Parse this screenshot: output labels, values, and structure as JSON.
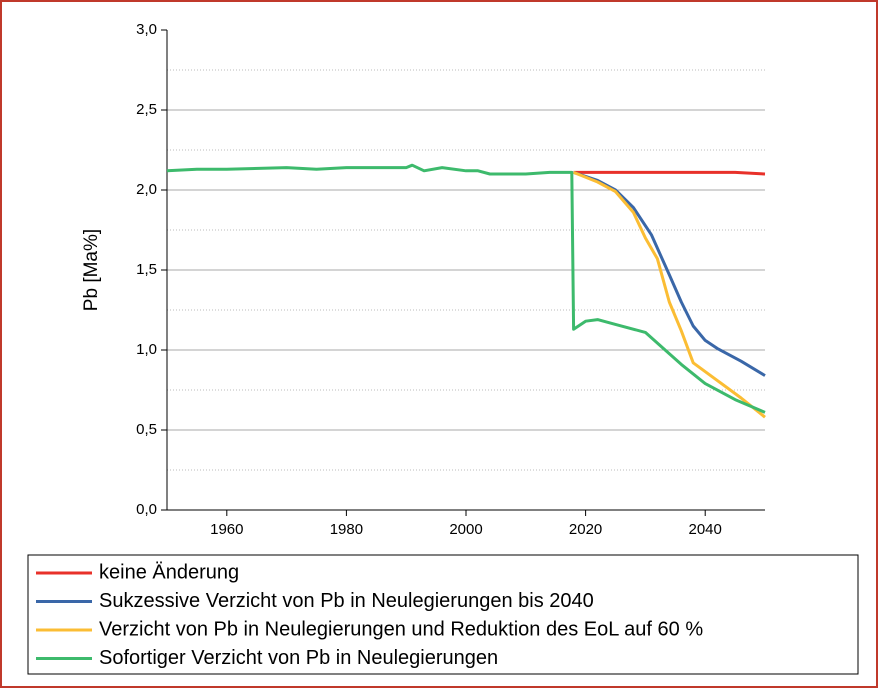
{
  "chart_data": {
    "type": "line",
    "ylabel": "Pb [Ma%]",
    "xlim": [
      1950,
      2050
    ],
    "xticks": [
      1960,
      1980,
      2000,
      2020,
      2040
    ],
    "ylim": [
      0,
      3
    ],
    "yticks": [
      {
        "value": 0,
        "label": "0,0"
      },
      {
        "value": 0.5,
        "label": "0,5"
      },
      {
        "value": 1,
        "label": "1,0"
      },
      {
        "value": 1.5,
        "label": "1,5"
      },
      {
        "value": 2,
        "label": "2,0"
      },
      {
        "value": 2.5,
        "label": "2,5"
      },
      {
        "value": 3,
        "label": "3,0"
      }
    ],
    "minor_yticks": [
      0.25,
      0.75,
      1.25,
      1.75,
      2.25,
      2.75
    ],
    "grid": true,
    "legend": "bottom",
    "series": [
      {
        "name": "keine Änderung",
        "color": "#e8312a",
        "x": [
          2018,
          2030,
          2045,
          2050
        ],
        "values": [
          2.11,
          2.11,
          2.11,
          2.1
        ]
      },
      {
        "name": "Sukzessive Verzicht von Pb in Neulegierungen bis 2040",
        "color": "#3a67a8",
        "x": [
          2018,
          2022,
          2025,
          2028,
          2031,
          2034,
          2036,
          2038,
          2040,
          2042,
          2046,
          2050
        ],
        "values": [
          2.11,
          2.06,
          2.0,
          1.89,
          1.72,
          1.47,
          1.3,
          1.15,
          1.06,
          1.01,
          0.93,
          0.84
        ]
      },
      {
        "name": "Verzicht von Pb in Neulegierungen und Reduktion des EoL auf 60 %",
        "color": "#fbbd34",
        "x": [
          2018,
          2022,
          2025,
          2028,
          2030,
          2032,
          2034,
          2036,
          2038,
          2042,
          2046,
          2050
        ],
        "values": [
          2.11,
          2.05,
          1.99,
          1.86,
          1.7,
          1.57,
          1.3,
          1.12,
          0.92,
          0.81,
          0.7,
          0.58
        ]
      },
      {
        "name": "Sofortiger Verzicht von Pb in Neulegierungen",
        "color": "#3dba6c",
        "x": [
          1950,
          1955,
          1960,
          1970,
          1975,
          1980,
          1990,
          1991,
          1993,
          1996,
          2000,
          2002,
          2004,
          2010,
          2014,
          2017.7,
          2018,
          2020,
          2022,
          2025,
          2030,
          2033,
          2036,
          2040,
          2045,
          2050
        ],
        "values": [
          2.12,
          2.13,
          2.13,
          2.14,
          2.13,
          2.14,
          2.14,
          2.155,
          2.12,
          2.14,
          2.12,
          2.12,
          2.1,
          2.1,
          2.11,
          2.11,
          1.13,
          1.18,
          1.19,
          1.16,
          1.11,
          1.01,
          0.91,
          0.79,
          0.69,
          0.61
        ]
      }
    ]
  }
}
